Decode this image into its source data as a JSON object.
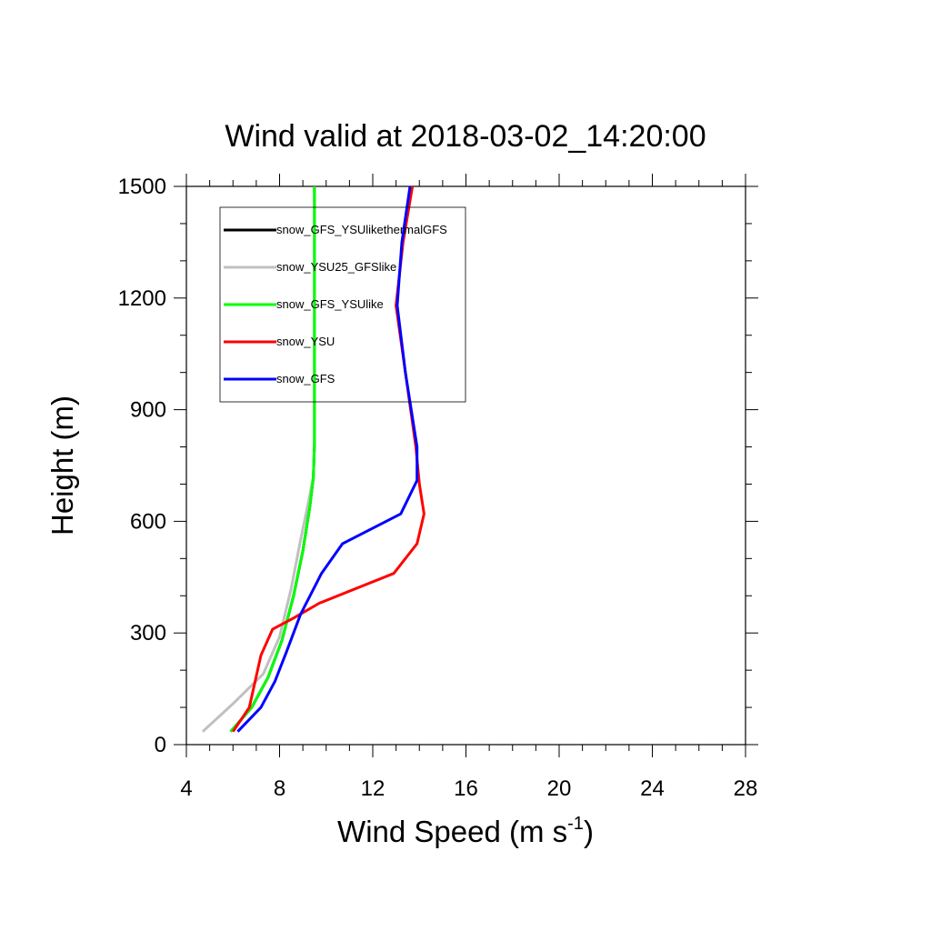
{
  "chart_data": {
    "type": "line",
    "title": "Wind valid at 2018-03-02_14:20:00",
    "xlabel_main": "Wind Speed (m s",
    "xlabel_sup": "-1",
    "xlabel_tail": ")",
    "ylabel": "Height (m)",
    "xlim": [
      4,
      28
    ],
    "ylim": [
      0,
      1500
    ],
    "xticks": [
      4,
      8,
      12,
      16,
      20,
      24,
      28
    ],
    "xtick_labels": [
      "4",
      "8",
      "12",
      "16",
      "20",
      "24",
      "28"
    ],
    "yticks": [
      0,
      300,
      600,
      900,
      1200,
      1500
    ],
    "ytick_labels": [
      "0",
      "300",
      "600",
      "900",
      "1200",
      "1500"
    ],
    "legend_position": "top-left",
    "series": [
      {
        "name": "snow_GFS_YSUlikethermalGFS",
        "color": "#000000",
        "points": [
          [
            5.9,
            35
          ],
          [
            6.8,
            100
          ],
          [
            7.5,
            180
          ],
          [
            8.1,
            280
          ],
          [
            8.6,
            400
          ],
          [
            9.0,
            520
          ],
          [
            9.3,
            640
          ],
          [
            9.45,
            720
          ],
          [
            9.5,
            810
          ],
          [
            9.5,
            1000
          ],
          [
            9.5,
            1200
          ],
          [
            9.5,
            1500
          ]
        ]
      },
      {
        "name": "snow_YSU25_GFSlike",
        "color": "#c0c0c0",
        "points": [
          [
            4.7,
            35
          ],
          [
            6.0,
            110
          ],
          [
            7.3,
            190
          ],
          [
            8.0,
            290
          ],
          [
            8.5,
            420
          ],
          [
            8.9,
            550
          ],
          [
            9.2,
            640
          ],
          [
            9.45,
            720
          ],
          [
            9.5,
            810
          ],
          [
            9.5,
            1000
          ],
          [
            9.5,
            1500
          ]
        ]
      },
      {
        "name": "snow_GFS_YSUlike",
        "color": "#00ff00",
        "points": [
          [
            5.9,
            35
          ],
          [
            6.8,
            100
          ],
          [
            7.5,
            180
          ],
          [
            8.1,
            280
          ],
          [
            8.6,
            400
          ],
          [
            9.0,
            520
          ],
          [
            9.3,
            640
          ],
          [
            9.45,
            720
          ],
          [
            9.5,
            810
          ],
          [
            9.5,
            1000
          ],
          [
            9.5,
            1500
          ]
        ]
      },
      {
        "name": "snow_YSU",
        "color": "#ff0000",
        "points": [
          [
            6.0,
            35
          ],
          [
            6.7,
            100
          ],
          [
            7.2,
            240
          ],
          [
            7.7,
            310
          ],
          [
            8.6,
            340
          ],
          [
            9.7,
            380
          ],
          [
            12.9,
            460
          ],
          [
            13.9,
            540
          ],
          [
            14.2,
            620
          ],
          [
            14.0,
            700
          ],
          [
            13.85,
            800
          ],
          [
            13.4,
            1000
          ],
          [
            13.0,
            1180
          ],
          [
            13.3,
            1350
          ],
          [
            13.7,
            1500
          ]
        ]
      },
      {
        "name": "snow_GFS",
        "color": "#0000ff",
        "points": [
          [
            6.2,
            35
          ],
          [
            7.2,
            100
          ],
          [
            7.8,
            170
          ],
          [
            8.3,
            250
          ],
          [
            8.9,
            350
          ],
          [
            9.8,
            460
          ],
          [
            10.7,
            540
          ],
          [
            13.2,
            620
          ],
          [
            13.9,
            710
          ],
          [
            13.9,
            800
          ],
          [
            13.4,
            1000
          ],
          [
            13.05,
            1180
          ],
          [
            13.25,
            1350
          ],
          [
            13.6,
            1500
          ]
        ]
      }
    ]
  }
}
